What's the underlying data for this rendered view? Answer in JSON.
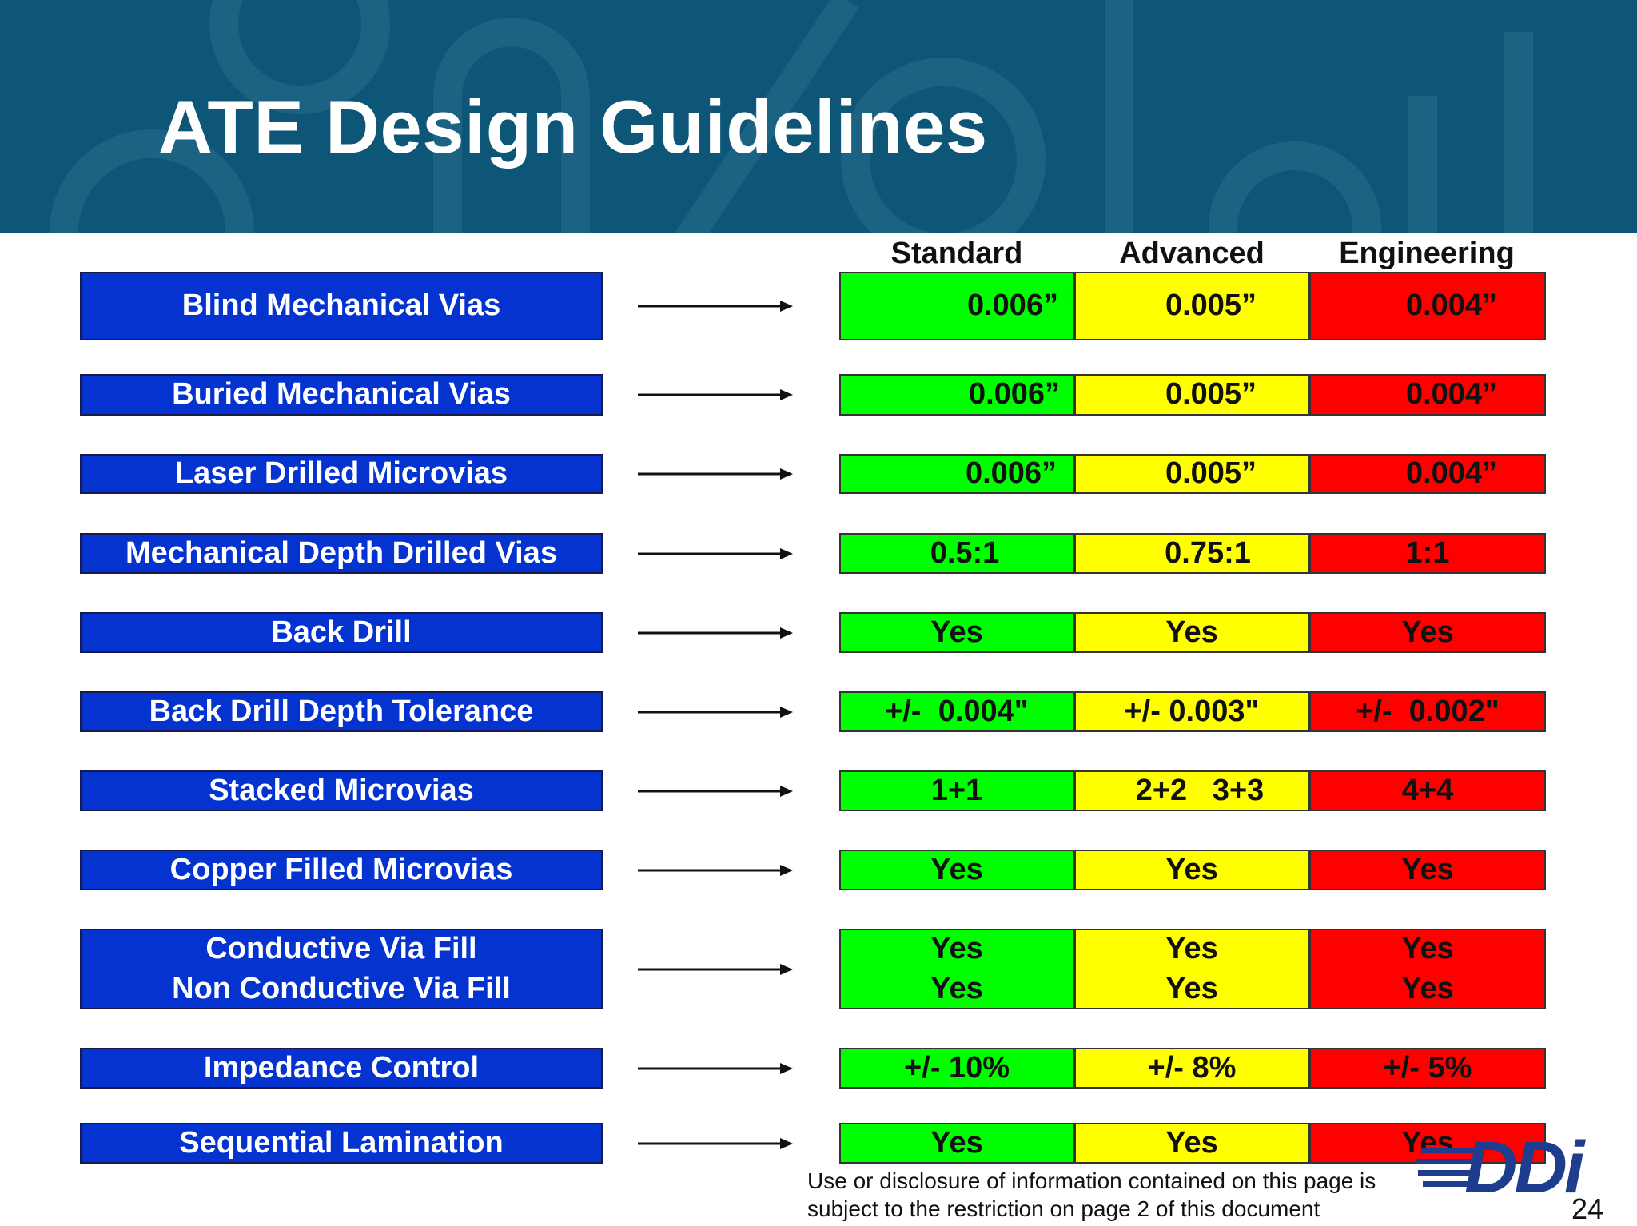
{
  "slide": {
    "title": "ATE Design Guidelines",
    "columns": [
      "Standard",
      "Advanced",
      "Engineering"
    ],
    "colors": {
      "header_bg": "#0d5677",
      "label_bg": "#0533cf",
      "standard": "#00ff00",
      "advanced": "#ffff00",
      "engineering": "#ff0000"
    },
    "rows": [
      {
        "label": [
          "Blind Mechanical Vias"
        ],
        "standard": [
          "0.006”"
        ],
        "advanced": [
          "0.005”"
        ],
        "engineering": [
          "0.004”"
        ]
      },
      {
        "label": [
          "Buried Mechanical Vias"
        ],
        "standard": [
          "0.006”"
        ],
        "advanced": [
          "0.005”"
        ],
        "engineering": [
          "0.004”"
        ]
      },
      {
        "label": [
          "Laser Drilled Microvias"
        ],
        "standard": [
          "0.006”"
        ],
        "advanced": [
          "0.005”"
        ],
        "engineering": [
          "0.004”"
        ]
      },
      {
        "label": [
          "Mechanical Depth Drilled Vias"
        ],
        "standard": [
          "0.5:1"
        ],
        "advanced": [
          "0.75:1"
        ],
        "engineering": [
          "1:1"
        ]
      },
      {
        "label": [
          "Back Drill"
        ],
        "standard": [
          "Yes"
        ],
        "advanced": [
          "Yes"
        ],
        "engineering": [
          "Yes"
        ]
      },
      {
        "label": [
          "Back Drill Depth Tolerance"
        ],
        "standard": [
          "+/-  0.004\""
        ],
        "advanced": [
          "+/- 0.003\""
        ],
        "engineering": [
          "+/-  0.002\""
        ]
      },
      {
        "label": [
          "Stacked Microvias"
        ],
        "standard": [
          "1+1"
        ],
        "advanced": [
          "2+2   3+3"
        ],
        "engineering": [
          "4+4"
        ]
      },
      {
        "label": [
          "Copper Filled Microvias"
        ],
        "standard": [
          "Yes"
        ],
        "advanced": [
          "Yes"
        ],
        "engineering": [
          "Yes"
        ]
      },
      {
        "label": [
          "Conductive Via Fill",
          "Non Conductive Via Fill"
        ],
        "standard": [
          "Yes",
          "Yes"
        ],
        "advanced": [
          "Yes",
          "Yes"
        ],
        "engineering": [
          "Yes",
          "Yes"
        ]
      },
      {
        "label": [
          "Impedance Control"
        ],
        "standard": [
          "+/- 10%"
        ],
        "advanced": [
          "+/- 8%"
        ],
        "engineering": [
          "+/- 5%"
        ]
      },
      {
        "label": [
          "Sequential Lamination"
        ],
        "standard": [
          "Yes"
        ],
        "advanced": [
          "Yes"
        ],
        "engineering": [
          "Yes"
        ]
      }
    ],
    "footer_note": [
      "Use or disclosure of information contained on this page is",
      "subject to the restriction on page 2 of this document"
    ],
    "logo_text": "DDi",
    "page_number": "24"
  }
}
